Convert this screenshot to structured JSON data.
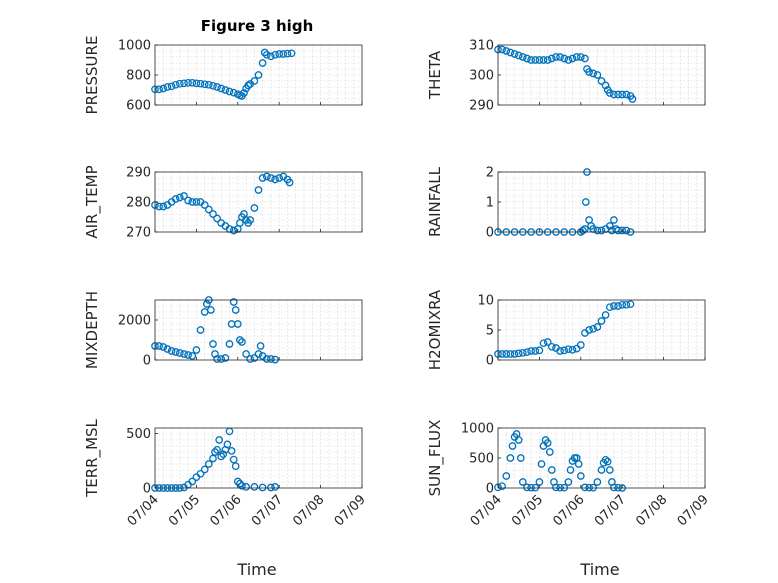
{
  "figure": {
    "title": "Figure 3 high",
    "xlabel": "Time",
    "marker_color": "#0072BD",
    "x_ticks": [
      "07/04",
      "07/05",
      "07/06",
      "07/07",
      "07/08",
      "07/09"
    ]
  },
  "chart_data": [
    {
      "type": "scatter",
      "id": "pressure",
      "ylabel": "PRESSURE",
      "ylim": [
        600,
        1000
      ],
      "yticks": [
        "600",
        "800",
        "1000"
      ],
      "grid": true,
      "points": [
        [
          0.0,
          705
        ],
        [
          0.1,
          705
        ],
        [
          0.2,
          710
        ],
        [
          0.3,
          720
        ],
        [
          0.4,
          725
        ],
        [
          0.5,
          735
        ],
        [
          0.6,
          742
        ],
        [
          0.7,
          745
        ],
        [
          0.8,
          748
        ],
        [
          0.9,
          748
        ],
        [
          1.0,
          745
        ],
        [
          1.1,
          742
        ],
        [
          1.2,
          738
        ],
        [
          1.3,
          735
        ],
        [
          1.4,
          728
        ],
        [
          1.5,
          720
        ],
        [
          1.6,
          710
        ],
        [
          1.7,
          700
        ],
        [
          1.8,
          690
        ],
        [
          1.9,
          682
        ],
        [
          2.0,
          672
        ],
        [
          2.05,
          665
        ],
        [
          2.1,
          660
        ],
        [
          2.15,
          680
        ],
        [
          2.2,
          710
        ],
        [
          2.25,
          730
        ],
        [
          2.3,
          740
        ],
        [
          2.4,
          760
        ],
        [
          2.5,
          800
        ],
        [
          2.6,
          880
        ],
        [
          2.65,
          950
        ],
        [
          2.7,
          935
        ],
        [
          2.8,
          925
        ],
        [
          2.9,
          935
        ],
        [
          3.0,
          940
        ],
        [
          3.1,
          940
        ],
        [
          3.2,
          942
        ],
        [
          3.3,
          945
        ]
      ]
    },
    {
      "type": "scatter",
      "id": "theta",
      "ylabel": "THETA",
      "ylim": [
        290,
        310
      ],
      "yticks": [
        "290",
        "300",
        "310"
      ],
      "grid": true,
      "points": [
        [
          0.0,
          308.5
        ],
        [
          0.1,
          308.5
        ],
        [
          0.2,
          308
        ],
        [
          0.3,
          307.5
        ],
        [
          0.4,
          307
        ],
        [
          0.5,
          306.5
        ],
        [
          0.6,
          306
        ],
        [
          0.7,
          305.5
        ],
        [
          0.8,
          305
        ],
        [
          0.9,
          305
        ],
        [
          1.0,
          305
        ],
        [
          1.1,
          305
        ],
        [
          1.2,
          305
        ],
        [
          1.3,
          305.5
        ],
        [
          1.4,
          306
        ],
        [
          1.5,
          306
        ],
        [
          1.6,
          305.5
        ],
        [
          1.7,
          305
        ],
        [
          1.8,
          305.5
        ],
        [
          1.9,
          306
        ],
        [
          2.0,
          306
        ],
        [
          2.1,
          305.5
        ],
        [
          2.15,
          302
        ],
        [
          2.2,
          301
        ],
        [
          2.3,
          300.5
        ],
        [
          2.4,
          300
        ],
        [
          2.5,
          298
        ],
        [
          2.6,
          296.5
        ],
        [
          2.65,
          295
        ],
        [
          2.7,
          294
        ],
        [
          2.8,
          293.5
        ],
        [
          2.9,
          293.5
        ],
        [
          3.0,
          293.5
        ],
        [
          3.1,
          293.5
        ],
        [
          3.2,
          293
        ],
        [
          3.25,
          292
        ]
      ]
    },
    {
      "type": "scatter",
      "id": "air_temp",
      "ylabel": "AIR_TEMP",
      "ylim": [
        270,
        290
      ],
      "yticks": [
        "270",
        "280",
        "290"
      ],
      "grid": true,
      "points": [
        [
          0.0,
          279
        ],
        [
          0.1,
          278.5
        ],
        [
          0.2,
          278.5
        ],
        [
          0.3,
          279
        ],
        [
          0.4,
          280
        ],
        [
          0.5,
          281
        ],
        [
          0.6,
          281.5
        ],
        [
          0.7,
          282
        ],
        [
          0.8,
          280.5
        ],
        [
          0.9,
          280
        ],
        [
          1.0,
          280
        ],
        [
          1.1,
          280
        ],
        [
          1.2,
          279
        ],
        [
          1.3,
          277.5
        ],
        [
          1.4,
          276
        ],
        [
          1.5,
          274.5
        ],
        [
          1.6,
          273
        ],
        [
          1.7,
          272
        ],
        [
          1.8,
          271
        ],
        [
          1.9,
          270.5
        ],
        [
          2.0,
          271
        ],
        [
          2.05,
          273
        ],
        [
          2.1,
          275
        ],
        [
          2.15,
          276
        ],
        [
          2.2,
          274
        ],
        [
          2.25,
          273
        ],
        [
          2.3,
          274
        ],
        [
          2.4,
          278
        ],
        [
          2.5,
          284
        ],
        [
          2.6,
          288
        ],
        [
          2.7,
          288.5
        ],
        [
          2.8,
          288
        ],
        [
          2.9,
          287.5
        ],
        [
          3.0,
          288
        ],
        [
          3.1,
          288.5
        ],
        [
          3.2,
          287.5
        ],
        [
          3.25,
          286.5
        ]
      ]
    },
    {
      "type": "scatter",
      "id": "rainfall",
      "ylabel": "RAINFALL",
      "ylim": [
        0,
        2
      ],
      "yticks": [
        "0",
        "1",
        "2"
      ],
      "grid": true,
      "points": [
        [
          0.0,
          0
        ],
        [
          0.2,
          0
        ],
        [
          0.4,
          0
        ],
        [
          0.6,
          0
        ],
        [
          0.8,
          0
        ],
        [
          1.0,
          0
        ],
        [
          1.2,
          0
        ],
        [
          1.4,
          0
        ],
        [
          1.6,
          0
        ],
        [
          1.8,
          0
        ],
        [
          2.0,
          0
        ],
        [
          2.05,
          0.05
        ],
        [
          2.1,
          0.1
        ],
        [
          2.12,
          1.0
        ],
        [
          2.15,
          2.0
        ],
        [
          2.2,
          0.4
        ],
        [
          2.25,
          0.2
        ],
        [
          2.3,
          0.1
        ],
        [
          2.4,
          0.05
        ],
        [
          2.5,
          0.05
        ],
        [
          2.6,
          0.1
        ],
        [
          2.7,
          0.2
        ],
        [
          2.75,
          0.05
        ],
        [
          2.8,
          0.4
        ],
        [
          2.85,
          0.1
        ],
        [
          2.9,
          0.05
        ],
        [
          3.0,
          0.05
        ],
        [
          3.1,
          0.05
        ],
        [
          3.2,
          0
        ]
      ]
    },
    {
      "type": "scatter",
      "id": "mixdepth",
      "ylabel": "MIXDEPTH",
      "ylim": [
        0,
        3000
      ],
      "yticks": [
        "0",
        "2000"
      ],
      "grid": true,
      "points": [
        [
          0.0,
          700
        ],
        [
          0.1,
          700
        ],
        [
          0.2,
          650
        ],
        [
          0.3,
          550
        ],
        [
          0.4,
          450
        ],
        [
          0.5,
          400
        ],
        [
          0.6,
          350
        ],
        [
          0.7,
          300
        ],
        [
          0.8,
          250
        ],
        [
          0.9,
          200
        ],
        [
          1.0,
          500
        ],
        [
          1.1,
          1500
        ],
        [
          1.2,
          2400
        ],
        [
          1.25,
          2800
        ],
        [
          1.3,
          3000
        ],
        [
          1.35,
          2500
        ],
        [
          1.4,
          800
        ],
        [
          1.45,
          300
        ],
        [
          1.5,
          50
        ],
        [
          1.6,
          50
        ],
        [
          1.7,
          100
        ],
        [
          1.8,
          800
        ],
        [
          1.85,
          1800
        ],
        [
          1.9,
          2900
        ],
        [
          1.95,
          2500
        ],
        [
          2.0,
          1800
        ],
        [
          2.05,
          1000
        ],
        [
          2.1,
          900
        ],
        [
          2.2,
          300
        ],
        [
          2.3,
          50
        ],
        [
          2.4,
          100
        ],
        [
          2.5,
          300
        ],
        [
          2.55,
          700
        ],
        [
          2.6,
          200
        ],
        [
          2.7,
          50
        ],
        [
          2.8,
          50
        ],
        [
          2.9,
          20
        ]
      ]
    },
    {
      "type": "scatter",
      "id": "h2omixra",
      "ylabel": "H2OMIXRA",
      "ylim": [
        0,
        10
      ],
      "yticks": [
        "0",
        "5",
        "10"
      ],
      "grid": true,
      "points": [
        [
          0.0,
          1
        ],
        [
          0.1,
          1
        ],
        [
          0.2,
          1
        ],
        [
          0.3,
          1
        ],
        [
          0.4,
          1
        ],
        [
          0.5,
          1.1
        ],
        [
          0.6,
          1.2
        ],
        [
          0.7,
          1.3
        ],
        [
          0.8,
          1.5
        ],
        [
          0.9,
          1.5
        ],
        [
          1.0,
          1.6
        ],
        [
          1.1,
          2.8
        ],
        [
          1.2,
          3
        ],
        [
          1.3,
          2.2
        ],
        [
          1.4,
          2
        ],
        [
          1.5,
          1.5
        ],
        [
          1.6,
          1.6
        ],
        [
          1.7,
          1.8
        ],
        [
          1.8,
          1.7
        ],
        [
          1.9,
          1.9
        ],
        [
          2.0,
          2.5
        ],
        [
          2.1,
          4.5
        ],
        [
          2.2,
          5
        ],
        [
          2.3,
          5.2
        ],
        [
          2.4,
          5.5
        ],
        [
          2.5,
          6.5
        ],
        [
          2.6,
          7.5
        ],
        [
          2.7,
          8.8
        ],
        [
          2.8,
          9
        ],
        [
          2.9,
          9
        ],
        [
          3.0,
          9.2
        ],
        [
          3.1,
          9.2
        ],
        [
          3.2,
          9.3
        ]
      ]
    },
    {
      "type": "scatter",
      "id": "terr_msl",
      "ylabel": "TERR_MSL",
      "ylim": [
        0,
        550
      ],
      "yticks": [
        "0",
        "500"
      ],
      "grid": true,
      "points": [
        [
          0.0,
          0
        ],
        [
          0.1,
          0
        ],
        [
          0.2,
          0
        ],
        [
          0.3,
          0
        ],
        [
          0.4,
          0
        ],
        [
          0.5,
          0
        ],
        [
          0.6,
          0
        ],
        [
          0.7,
          5
        ],
        [
          0.8,
          30
        ],
        [
          0.9,
          60
        ],
        [
          1.0,
          100
        ],
        [
          1.1,
          130
        ],
        [
          1.2,
          170
        ],
        [
          1.3,
          220
        ],
        [
          1.4,
          270
        ],
        [
          1.45,
          330
        ],
        [
          1.5,
          350
        ],
        [
          1.55,
          440
        ],
        [
          1.6,
          290
        ],
        [
          1.65,
          310
        ],
        [
          1.7,
          350
        ],
        [
          1.75,
          400
        ],
        [
          1.8,
          520
        ],
        [
          1.85,
          340
        ],
        [
          1.9,
          260
        ],
        [
          1.95,
          200
        ],
        [
          2.0,
          60
        ],
        [
          2.05,
          40
        ],
        [
          2.1,
          20
        ],
        [
          2.2,
          10
        ],
        [
          2.4,
          10
        ],
        [
          2.6,
          5
        ],
        [
          2.8,
          5
        ],
        [
          2.9,
          10
        ]
      ]
    },
    {
      "type": "scatter",
      "id": "sun_flux",
      "ylabel": "SUN_FLUX",
      "ylim": [
        0,
        1000
      ],
      "yticks": [
        "0",
        "500",
        "1000"
      ],
      "grid": true,
      "points": [
        [
          0.0,
          10
        ],
        [
          0.1,
          30
        ],
        [
          0.2,
          200
        ],
        [
          0.3,
          500
        ],
        [
          0.35,
          700
        ],
        [
          0.4,
          850
        ],
        [
          0.45,
          900
        ],
        [
          0.5,
          800
        ],
        [
          0.55,
          500
        ],
        [
          0.6,
          100
        ],
        [
          0.7,
          10
        ],
        [
          0.8,
          5
        ],
        [
          0.9,
          5
        ],
        [
          1.0,
          100
        ],
        [
          1.05,
          400
        ],
        [
          1.1,
          700
        ],
        [
          1.15,
          800
        ],
        [
          1.2,
          750
        ],
        [
          1.25,
          600
        ],
        [
          1.3,
          300
        ],
        [
          1.35,
          100
        ],
        [
          1.4,
          10
        ],
        [
          1.5,
          5
        ],
        [
          1.6,
          5
        ],
        [
          1.7,
          100
        ],
        [
          1.75,
          300
        ],
        [
          1.8,
          450
        ],
        [
          1.85,
          500
        ],
        [
          1.9,
          500
        ],
        [
          1.95,
          400
        ],
        [
          2.0,
          200
        ],
        [
          2.1,
          10
        ],
        [
          2.2,
          5
        ],
        [
          2.3,
          5
        ],
        [
          2.4,
          100
        ],
        [
          2.5,
          300
        ],
        [
          2.55,
          420
        ],
        [
          2.6,
          470
        ],
        [
          2.65,
          440
        ],
        [
          2.7,
          300
        ],
        [
          2.75,
          100
        ],
        [
          2.8,
          10
        ],
        [
          2.9,
          5
        ],
        [
          3.0,
          0
        ]
      ]
    }
  ]
}
